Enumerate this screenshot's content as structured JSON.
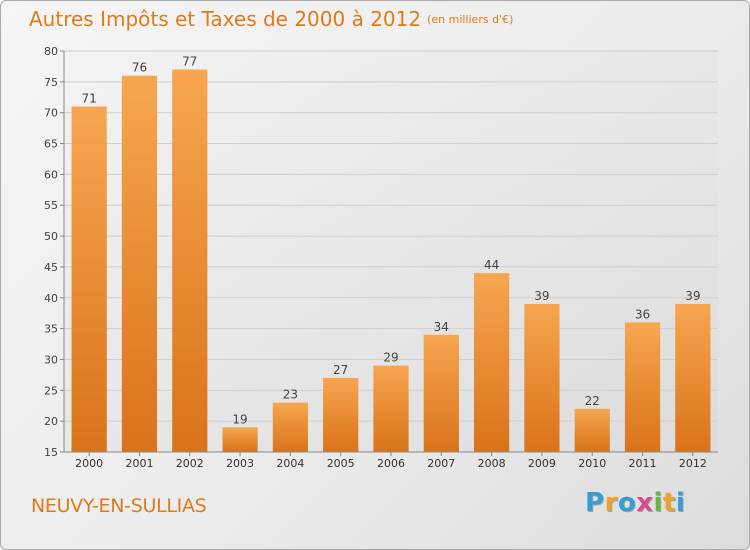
{
  "chart_data": {
    "type": "bar",
    "title": "Autres Impôts et Taxes de 2000 à 2012",
    "subtitle": "(en milliers d'€)",
    "categories": [
      "2000",
      "2001",
      "2002",
      "2003",
      "2004",
      "2005",
      "2006",
      "2007",
      "2008",
      "2009",
      "2010",
      "2011",
      "2012"
    ],
    "values": [
      71,
      76,
      77,
      19,
      23,
      27,
      29,
      34,
      44,
      39,
      22,
      36,
      39
    ],
    "ylim": [
      15,
      80
    ],
    "yticks": [
      15,
      20,
      25,
      30,
      35,
      40,
      45,
      50,
      55,
      60,
      65,
      70,
      75,
      80
    ],
    "grid": true,
    "bar_color": "#f39c3c"
  },
  "footer": {
    "place": "NEUVY-EN-SULLIAS",
    "logo_letters": [
      "P",
      "r",
      "o",
      "x",
      "i",
      "t",
      "i"
    ],
    "logo_colors": [
      "#3a9bd5",
      "#f0a12a",
      "#3a9bd5",
      "#e04a8a",
      "#6db33f",
      "#f0a12a",
      "#3a9bd5"
    ]
  }
}
